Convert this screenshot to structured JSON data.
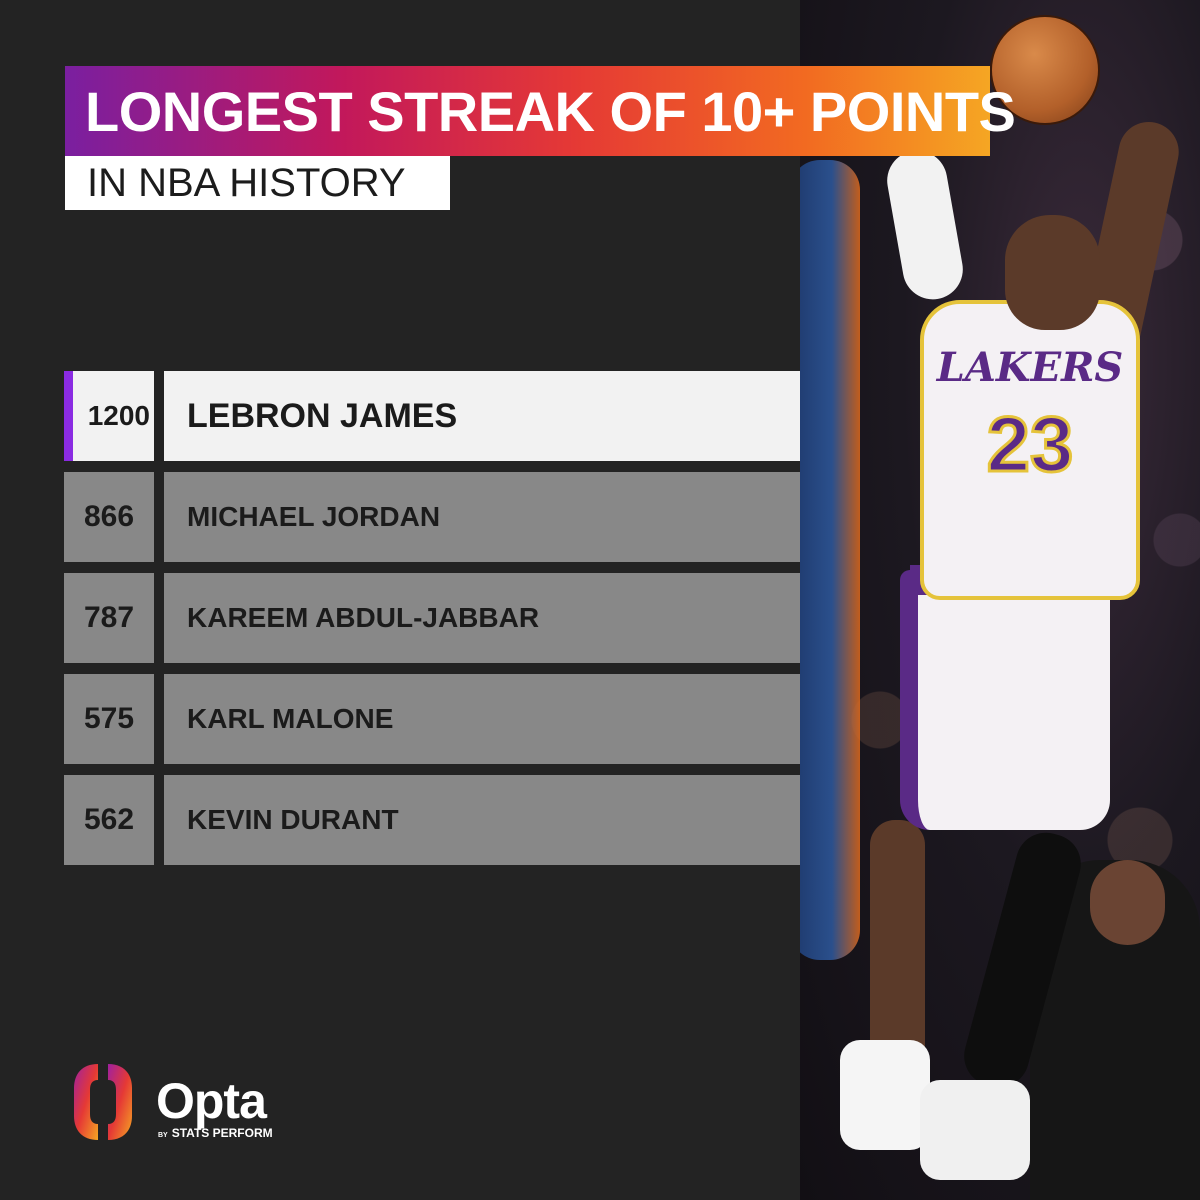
{
  "title": "LONGEST STREAK OF 10+ POINTS",
  "subtitle": "IN NBA HISTORY",
  "rows": [
    {
      "value": "1200",
      "name": "LEBRON JAMES",
      "highlight": true
    },
    {
      "value": "866",
      "name": "MICHAEL JORDAN"
    },
    {
      "value": "787",
      "name": "KAREEM ABDUL-JABBAR"
    },
    {
      "value": "575",
      "name": "KARL MALONE"
    },
    {
      "value": "562",
      "name": "KEVIN DURANT"
    }
  ],
  "logo": {
    "word": "Opta",
    "by": "BY",
    "company": "STATS PERFORM"
  },
  "photo": {
    "jersey_text": "LAKERS",
    "jersey_number": "23"
  },
  "colors": {
    "background": "#232323",
    "row_bg": "#888888",
    "highlight_bg": "#f2f2f2",
    "accent": "#8a2be2"
  }
}
